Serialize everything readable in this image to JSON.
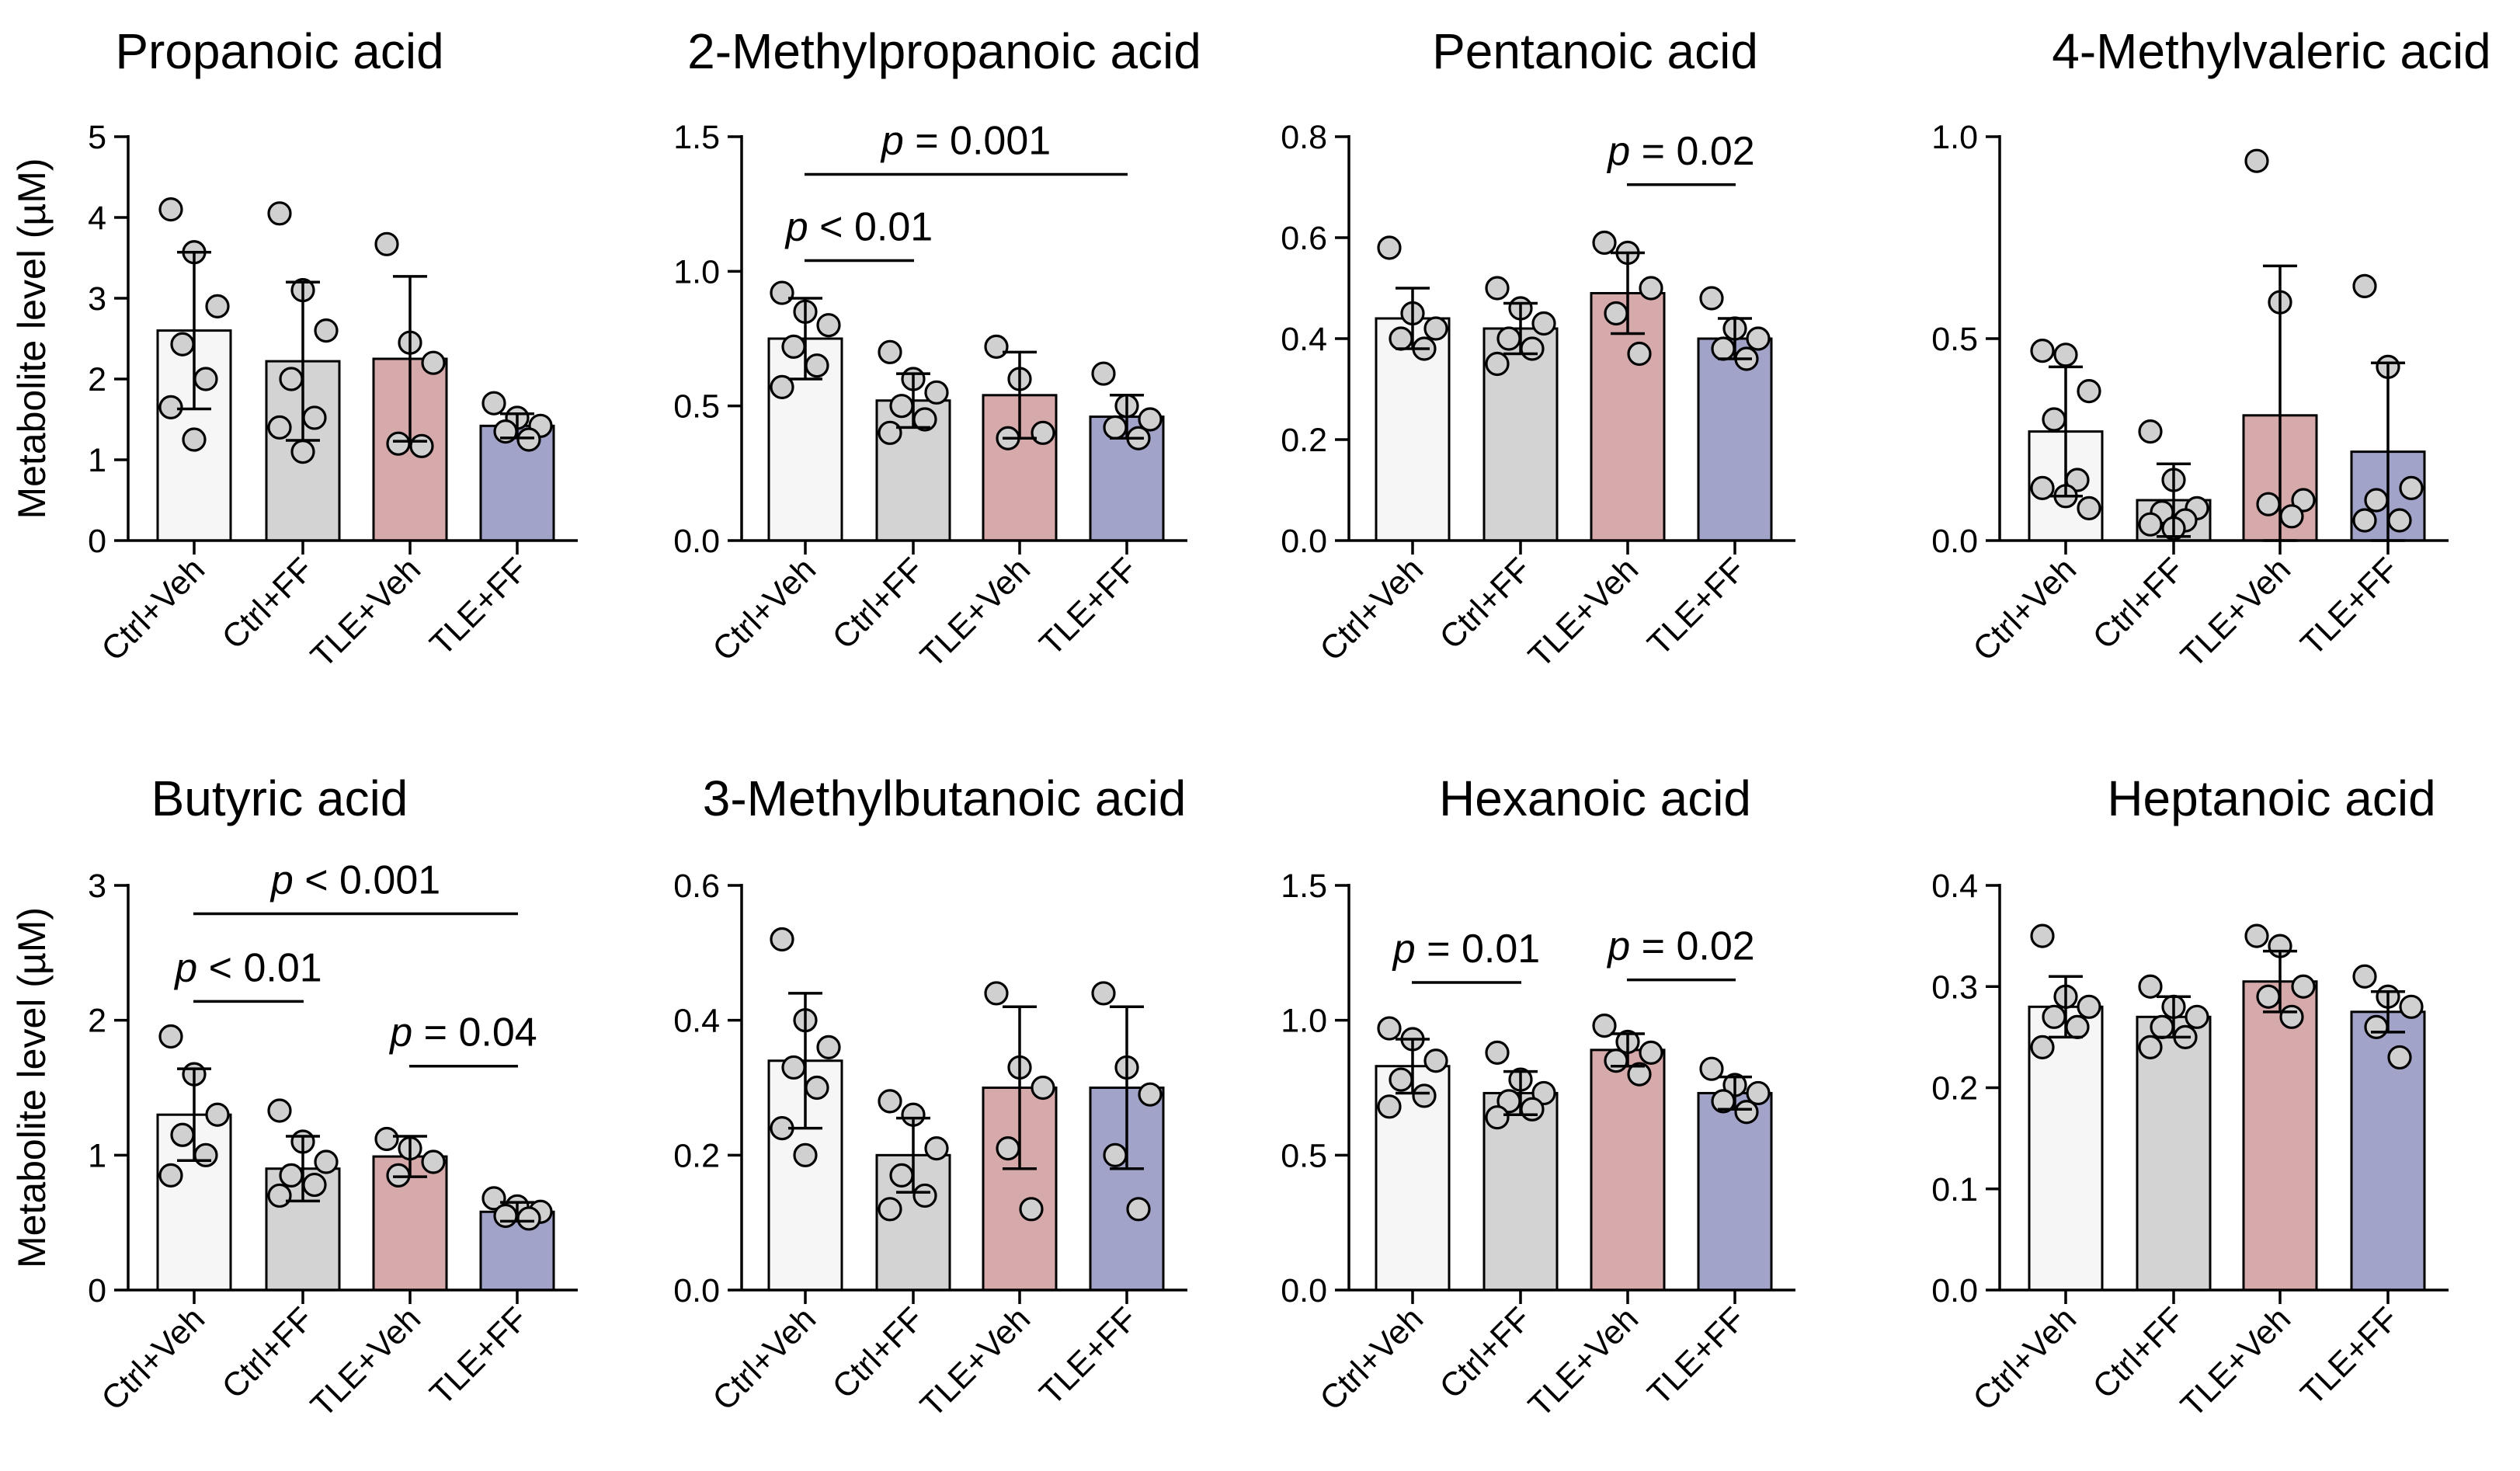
{
  "figure": {
    "shared_ylabel": "Metabolite level (µM)",
    "categories": [
      "Ctrl+Veh",
      "Ctrl+FF",
      "TLE+Veh",
      "TLE+FF"
    ],
    "group_colors": [
      "#f6f6f6",
      "#d3d3d3",
      "#d6aaaa",
      "#a1a3c9"
    ]
  },
  "chart_data": [
    {
      "type": "bar",
      "title": "Propanoic acid",
      "ylabel": "Metabolite level (µM)",
      "categories": [
        "Ctrl+Veh",
        "Ctrl+FF",
        "TLE+Veh",
        "TLE+FF"
      ],
      "values": [
        2.6,
        2.22,
        2.25,
        1.42
      ],
      "sd": [
        0.97,
        0.98,
        1.02,
        0.15
      ],
      "points": [
        [
          4.1,
          3.57,
          2.9,
          2.43,
          2.0,
          1.65,
          1.25
        ],
        [
          4.05,
          3.1,
          2.6,
          2.0,
          1.52,
          1.4,
          1.1
        ],
        [
          3.67,
          2.45,
          2.2,
          1.2,
          1.17
        ],
        [
          1.7,
          1.52,
          1.42,
          1.35,
          1.25
        ]
      ],
      "ylim": [
        0,
        5
      ],
      "yticks": [
        0,
        1,
        2,
        3,
        4,
        5
      ],
      "ytick_labels": [
        "0",
        "1",
        "2",
        "3",
        "4",
        "5"
      ],
      "significance": []
    },
    {
      "type": "bar",
      "title": "2-Methylpropanoic acid",
      "ylabel": "",
      "categories": [
        "Ctrl+Veh",
        "Ctrl+FF",
        "TLE+Veh",
        "TLE+FF"
      ],
      "values": [
        0.75,
        0.52,
        0.54,
        0.46
      ],
      "sd": [
        0.15,
        0.1,
        0.16,
        0.08
      ],
      "points": [
        [
          0.92,
          0.85,
          0.8,
          0.72,
          0.65,
          0.57
        ],
        [
          0.7,
          0.6,
          0.55,
          0.5,
          0.45,
          0.4
        ],
        [
          0.72,
          0.6,
          0.4,
          0.38
        ],
        [
          0.62,
          0.5,
          0.45,
          0.42,
          0.38
        ]
      ],
      "ylim": [
        0,
        1.5
      ],
      "yticks": [
        0,
        0.5,
        1.0,
        1.5
      ],
      "ytick_labels": [
        "0.0",
        "0.5",
        "1.0",
        "1.5"
      ],
      "significance": [
        {
          "from": 0,
          "to": 1,
          "y": 1.04,
          "label_prefix": "p",
          "label_rest": " < 0.01"
        },
        {
          "from": 0,
          "to": 3,
          "y": 1.36,
          "label_prefix": "p",
          "label_rest": " = 0.001"
        }
      ]
    },
    {
      "type": "bar",
      "title": "Pentanoic acid",
      "ylabel": "",
      "categories": [
        "Ctrl+Veh",
        "Ctrl+FF",
        "TLE+Veh",
        "TLE+FF"
      ],
      "values": [
        0.44,
        0.42,
        0.49,
        0.4
      ],
      "sd": [
        0.06,
        0.05,
        0.08,
        0.04
      ],
      "points": [
        [
          0.58,
          0.45,
          0.42,
          0.4,
          0.38
        ],
        [
          0.5,
          0.46,
          0.43,
          0.4,
          0.38,
          0.35
        ],
        [
          0.59,
          0.57,
          0.5,
          0.45,
          0.37
        ],
        [
          0.48,
          0.42,
          0.4,
          0.38,
          0.36
        ]
      ],
      "ylim": [
        0,
        0.8
      ],
      "yticks": [
        0,
        0.2,
        0.4,
        0.6,
        0.8
      ],
      "ytick_labels": [
        "0.0",
        "0.2",
        "0.4",
        "0.6",
        "0.8"
      ],
      "significance": [
        {
          "from": 2,
          "to": 3,
          "y": 0.705,
          "label_prefix": "p",
          "label_rest": " = 0.02"
        }
      ]
    },
    {
      "type": "bar",
      "title": "4-Methylvaleric acid",
      "ylabel": "",
      "categories": [
        "Ctrl+Veh",
        "Ctrl+FF",
        "TLE+Veh",
        "TLE+FF"
      ],
      "values": [
        0.27,
        0.1,
        0.31,
        0.22
      ],
      "sd": [
        0.16,
        0.09,
        0.37,
        0.22
      ],
      "points": [
        [
          0.47,
          0.46,
          0.37,
          0.3,
          0.15,
          0.13,
          0.11,
          0.08
        ],
        [
          0.27,
          0.15,
          0.08,
          0.07,
          0.05,
          0.04,
          0.03
        ],
        [
          0.94,
          0.59,
          0.1,
          0.09,
          0.06
        ],
        [
          0.63,
          0.43,
          0.13,
          0.1,
          0.05,
          0.05
        ]
      ],
      "ylim": [
        0,
        1.0
      ],
      "yticks": [
        0,
        0.5,
        1.0
      ],
      "ytick_labels": [
        "0.0",
        "0.5",
        "1.0"
      ],
      "significance": []
    },
    {
      "type": "bar",
      "title": "Butyric acid",
      "ylabel": "Metabolite level (µM)",
      "categories": [
        "Ctrl+Veh",
        "Ctrl+FF",
        "TLE+Veh",
        "TLE+FF"
      ],
      "values": [
        1.3,
        0.9,
        0.99,
        0.58
      ],
      "sd": [
        0.34,
        0.24,
        0.15,
        0.07
      ],
      "points": [
        [
          1.88,
          1.6,
          1.3,
          1.15,
          1.0,
          0.85
        ],
        [
          1.33,
          1.1,
          0.95,
          0.85,
          0.78,
          0.7
        ],
        [
          1.12,
          1.05,
          0.95,
          0.85
        ],
        [
          0.68,
          0.62,
          0.58,
          0.55,
          0.53
        ]
      ],
      "ylim": [
        0,
        3
      ],
      "yticks": [
        0,
        1,
        2,
        3
      ],
      "ytick_labels": [
        "0",
        "1",
        "2",
        "3"
      ],
      "significance": [
        {
          "from": 0,
          "to": 1,
          "y": 2.14,
          "label_prefix": "p",
          "label_rest": " < 0.01"
        },
        {
          "from": 0,
          "to": 3,
          "y": 2.79,
          "label_prefix": "p",
          "label_rest": " < 0.001"
        },
        {
          "from": 2,
          "to": 3,
          "y": 1.66,
          "label_prefix": "p",
          "label_rest": " = 0.04"
        }
      ]
    },
    {
      "type": "bar",
      "title": "3-Methylbutanoic acid",
      "ylabel": "",
      "categories": [
        "Ctrl+Veh",
        "Ctrl+FF",
        "TLE+Veh",
        "TLE+FF"
      ],
      "values": [
        0.34,
        0.2,
        0.3,
        0.3
      ],
      "sd": [
        0.1,
        0.055,
        0.12,
        0.12
      ],
      "points": [
        [
          0.52,
          0.4,
          0.36,
          0.33,
          0.3,
          0.24,
          0.2
        ],
        [
          0.28,
          0.26,
          0.21,
          0.17,
          0.14,
          0.12
        ],
        [
          0.44,
          0.33,
          0.3,
          0.21,
          0.12
        ],
        [
          0.44,
          0.33,
          0.29,
          0.2,
          0.12
        ]
      ],
      "ylim": [
        0,
        0.6
      ],
      "yticks": [
        0,
        0.2,
        0.4,
        0.6
      ],
      "ytick_labels": [
        "0.0",
        "0.2",
        "0.4",
        "0.6"
      ],
      "significance": []
    },
    {
      "type": "bar",
      "title": "Hexanoic acid",
      "ylabel": "",
      "categories": [
        "Ctrl+Veh",
        "Ctrl+FF",
        "TLE+Veh",
        "TLE+FF"
      ],
      "values": [
        0.83,
        0.73,
        0.89,
        0.73
      ],
      "sd": [
        0.1,
        0.08,
        0.06,
        0.06
      ],
      "points": [
        [
          0.97,
          0.93,
          0.85,
          0.78,
          0.72,
          0.68
        ],
        [
          0.88,
          0.78,
          0.73,
          0.7,
          0.67,
          0.64
        ],
        [
          0.98,
          0.92,
          0.88,
          0.85,
          0.8
        ],
        [
          0.82,
          0.76,
          0.73,
          0.7,
          0.66
        ]
      ],
      "ylim": [
        0,
        1.5
      ],
      "yticks": [
        0,
        0.5,
        1.0,
        1.5
      ],
      "ytick_labels": [
        "0.0",
        "0.5",
        "1.0",
        "1.5"
      ],
      "significance": [
        {
          "from": 0,
          "to": 1,
          "y": 1.14,
          "label_prefix": "p",
          "label_rest": " = 0.01"
        },
        {
          "from": 2,
          "to": 3,
          "y": 1.15,
          "label_prefix": "p",
          "label_rest": " = 0.02"
        }
      ]
    },
    {
      "type": "bar",
      "title": "Heptanoic acid",
      "ylabel": "",
      "categories": [
        "Ctrl+Veh",
        "Ctrl+FF",
        "TLE+Veh",
        "TLE+FF"
      ],
      "values": [
        0.28,
        0.27,
        0.305,
        0.275
      ],
      "sd": [
        0.03,
        0.02,
        0.03,
        0.02
      ],
      "points": [
        [
          0.35,
          0.29,
          0.28,
          0.27,
          0.26,
          0.24
        ],
        [
          0.3,
          0.28,
          0.27,
          0.26,
          0.25,
          0.24
        ],
        [
          0.35,
          0.34,
          0.3,
          0.29,
          0.27
        ],
        [
          0.31,
          0.29,
          0.28,
          0.26,
          0.23
        ]
      ],
      "ylim": [
        0,
        0.4
      ],
      "yticks": [
        0,
        0.1,
        0.2,
        0.3,
        0.4
      ],
      "ytick_labels": [
        "0.0",
        "0.1",
        "0.2",
        "0.3",
        "0.4"
      ],
      "significance": []
    }
  ]
}
